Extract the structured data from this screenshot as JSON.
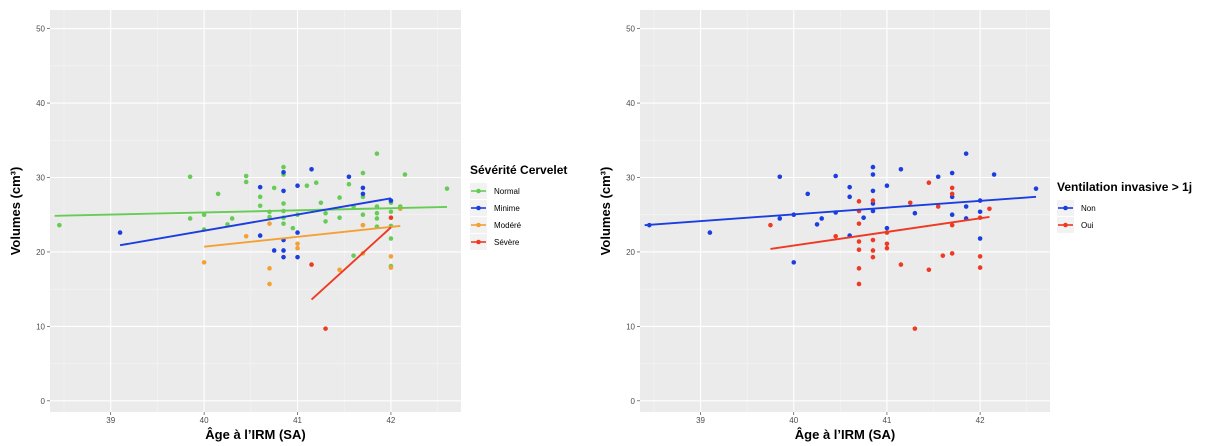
{
  "chart_data": [
    {
      "type": "scatter",
      "xlabel": "Âge à l’IRM (SA)",
      "ylabel": "Volumes (cm³)",
      "xticks": [
        "39",
        "40",
        "41",
        "42"
      ],
      "yticks": [
        "0",
        "10",
        "20",
        "30",
        "40",
        "50"
      ],
      "xlim": [
        38.35,
        42.75
      ],
      "ylim": [
        -1.5,
        52.5
      ],
      "grid": true,
      "legend": {
        "title": "Sévérité Cervelet",
        "placement": "right",
        "entries": [
          {
            "label": "Normal",
            "color": "#66cc55"
          },
          {
            "label": "Minime",
            "color": "#1a3ee0"
          },
          {
            "label": "Modéré",
            "color": "#f5a033"
          },
          {
            "label": "Sévère",
            "color": "#ee3a24"
          }
        ]
      },
      "series": [
        {
          "name": "Normal",
          "color": "#66cc55",
          "points": [
            [
              38.45,
              23.6
            ],
            [
              39.85,
              30.1
            ],
            [
              39.85,
              24.5
            ],
            [
              40.0,
              25.0
            ],
            [
              40.0,
              23.0
            ],
            [
              40.15,
              27.8
            ],
            [
              40.25,
              23.7
            ],
            [
              40.3,
              24.5
            ],
            [
              40.45,
              30.2
            ],
            [
              40.45,
              29.4
            ],
            [
              40.6,
              27.4
            ],
            [
              40.6,
              26.2
            ],
            [
              40.7,
              25.4
            ],
            [
              40.7,
              24.7
            ],
            [
              40.75,
              28.6
            ],
            [
              40.85,
              31.4
            ],
            [
              40.85,
              30.4
            ],
            [
              40.85,
              26.5
            ],
            [
              40.85,
              25.5
            ],
            [
              40.85,
              24.6
            ],
            [
              40.85,
              23.8
            ],
            [
              40.95,
              23.2
            ],
            [
              41.0,
              25.0
            ],
            [
              41.1,
              28.9
            ],
            [
              41.2,
              29.3
            ],
            [
              41.25,
              26.6
            ],
            [
              41.3,
              25.2
            ],
            [
              41.3,
              24.1
            ],
            [
              41.45,
              27.3
            ],
            [
              41.45,
              24.6
            ],
            [
              41.55,
              29.1
            ],
            [
              41.6,
              26.1
            ],
            [
              41.6,
              19.5
            ],
            [
              41.7,
              30.6
            ],
            [
              41.7,
              27.4
            ],
            [
              41.7,
              25.0
            ],
            [
              41.7,
              23.6
            ],
            [
              41.85,
              33.2
            ],
            [
              41.85,
              26.1
            ],
            [
              41.85,
              25.2
            ],
            [
              41.85,
              24.5
            ],
            [
              41.85,
              23.4
            ],
            [
              42.0,
              26.6
            ],
            [
              42.0,
              25.4
            ],
            [
              42.0,
              23.5
            ],
            [
              42.0,
              21.8
            ],
            [
              42.0,
              18.1
            ],
            [
              42.1,
              26.1
            ],
            [
              42.15,
              30.4
            ],
            [
              42.6,
              28.5
            ]
          ],
          "trend": [
            [
              38.4,
              24.85
            ],
            [
              42.6,
              26.05
            ]
          ]
        },
        {
          "name": "Minime",
          "color": "#1a3ee0",
          "points": [
            [
              39.1,
              22.6
            ],
            [
              40.6,
              28.7
            ],
            [
              40.6,
              22.2
            ],
            [
              40.75,
              20.2
            ],
            [
              40.85,
              30.7
            ],
            [
              40.85,
              28.2
            ],
            [
              40.85,
              21.6
            ],
            [
              40.85,
              20.2
            ],
            [
              40.85,
              19.3
            ],
            [
              41.0,
              28.9
            ],
            [
              41.0,
              22.6
            ],
            [
              41.0,
              19.3
            ],
            [
              41.15,
              31.1
            ],
            [
              41.55,
              30.1
            ],
            [
              41.7,
              28.6
            ],
            [
              41.7,
              27.8
            ],
            [
              42.0,
              26.9
            ]
          ],
          "trend": [
            [
              39.1,
              20.9
            ],
            [
              42.0,
              27.2
            ]
          ]
        },
        {
          "name": "Modéré",
          "color": "#f5a033",
          "points": [
            [
              40.0,
              18.6
            ],
            [
              40.45,
              22.1
            ],
            [
              40.7,
              23.8
            ],
            [
              40.7,
              17.8
            ],
            [
              40.7,
              15.7
            ],
            [
              41.0,
              21.1
            ],
            [
              41.0,
              20.5
            ],
            [
              41.45,
              17.6
            ],
            [
              41.7,
              23.6
            ],
            [
              41.7,
              19.8
            ],
            [
              42.0,
              19.4
            ],
            [
              42.0,
              17.9
            ],
            [
              42.1,
              25.8
            ]
          ],
          "trend": [
            [
              40.0,
              20.7
            ],
            [
              42.1,
              23.5
            ]
          ]
        },
        {
          "name": "Sévère",
          "color": "#ee3a24",
          "points": [
            [
              41.15,
              18.3
            ],
            [
              41.3,
              9.7
            ],
            [
              42.0,
              24.6
            ]
          ],
          "trend": [
            [
              41.15,
              13.6
            ],
            [
              42.0,
              23.3
            ]
          ]
        }
      ]
    },
    {
      "type": "scatter",
      "xlabel": "Âge à l’IRM (SA)",
      "ylabel": "Volumes (cm³)",
      "xticks": [
        "39",
        "40",
        "41",
        "42"
      ],
      "yticks": [
        "0",
        "10",
        "20",
        "30",
        "40",
        "50"
      ],
      "xlim": [
        38.35,
        42.75
      ],
      "ylim": [
        -1.5,
        52.5
      ],
      "grid": true,
      "legend": {
        "title": "Ventilation invasive > 1j",
        "placement": "right",
        "entries": [
          {
            "label": "Non",
            "color": "#1a3ee0"
          },
          {
            "label": "Oui",
            "color": "#ee3a24"
          }
        ]
      },
      "series": [
        {
          "name": "Non",
          "color": "#1a3ee0",
          "points": [
            [
              38.45,
              23.6
            ],
            [
              39.1,
              22.6
            ],
            [
              39.85,
              30.1
            ],
            [
              39.85,
              24.5
            ],
            [
              40.0,
              25.0
            ],
            [
              40.0,
              18.6
            ],
            [
              40.15,
              27.8
            ],
            [
              40.25,
              23.7
            ],
            [
              40.3,
              24.5
            ],
            [
              40.45,
              30.2
            ],
            [
              40.45,
              25.3
            ],
            [
              40.6,
              28.7
            ],
            [
              40.6,
              27.4
            ],
            [
              40.6,
              22.2
            ],
            [
              40.75,
              24.6
            ],
            [
              40.85,
              31.4
            ],
            [
              40.85,
              30.4
            ],
            [
              40.85,
              28.2
            ],
            [
              40.85,
              26.5
            ],
            [
              40.85,
              25.5
            ],
            [
              41.0,
              28.9
            ],
            [
              41.0,
              23.2
            ],
            [
              41.15,
              31.1
            ],
            [
              41.3,
              25.2
            ],
            [
              41.55,
              30.1
            ],
            [
              41.7,
              30.6
            ],
            [
              41.7,
              27.4
            ],
            [
              41.7,
              25.0
            ],
            [
              41.85,
              33.2
            ],
            [
              41.85,
              26.1
            ],
            [
              41.85,
              24.5
            ],
            [
              42.0,
              26.9
            ],
            [
              42.0,
              25.4
            ],
            [
              42.0,
              21.8
            ],
            [
              42.15,
              30.4
            ],
            [
              42.6,
              28.5
            ]
          ],
          "trend": [
            [
              38.4,
              23.6
            ],
            [
              42.6,
              27.4
            ]
          ]
        },
        {
          "name": "Oui",
          "color": "#ee3a24",
          "points": [
            [
              39.75,
              23.6
            ],
            [
              40.45,
              22.1
            ],
            [
              40.7,
              26.8
            ],
            [
              40.7,
              25.5
            ],
            [
              40.7,
              23.8
            ],
            [
              40.7,
              21.4
            ],
            [
              40.7,
              20.3
            ],
            [
              40.7,
              17.8
            ],
            [
              40.7,
              15.7
            ],
            [
              40.85,
              26.9
            ],
            [
              40.85,
              21.6
            ],
            [
              40.85,
              20.2
            ],
            [
              40.85,
              19.3
            ],
            [
              41.0,
              22.6
            ],
            [
              41.0,
              21.1
            ],
            [
              41.0,
              20.5
            ],
            [
              41.15,
              18.3
            ],
            [
              41.25,
              26.6
            ],
            [
              41.3,
              9.7
            ],
            [
              41.45,
              29.3
            ],
            [
              41.45,
              17.6
            ],
            [
              41.55,
              26.1
            ],
            [
              41.6,
              19.5
            ],
            [
              41.7,
              28.6
            ],
            [
              41.7,
              27.8
            ],
            [
              41.7,
              23.6
            ],
            [
              41.7,
              19.8
            ],
            [
              42.0,
              24.6
            ],
            [
              42.0,
              19.4
            ],
            [
              42.0,
              17.9
            ],
            [
              42.1,
              25.8
            ]
          ],
          "trend": [
            [
              39.75,
              20.4
            ],
            [
              42.1,
              24.7
            ]
          ]
        }
      ]
    }
  ]
}
